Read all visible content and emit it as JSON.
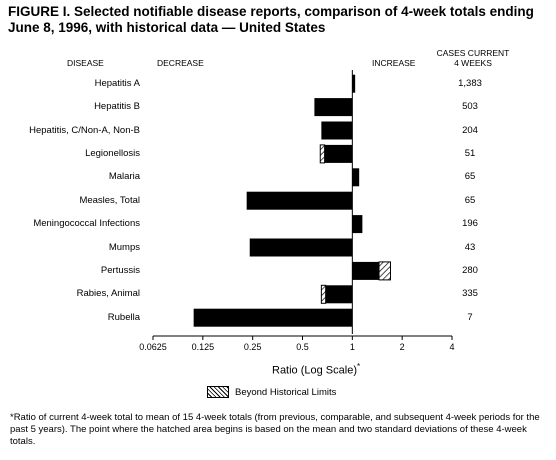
{
  "title": "FIGURE I. Selected notifiable disease reports, comparison of 4-week totals ending June 8, 1996, with historical data — United States",
  "headers": {
    "disease": "DISEASE",
    "decrease": "DECREASE",
    "increase": "INCREASE",
    "cases_line1": "CASES CURRENT",
    "cases_line2": "4 WEEKS"
  },
  "legend": {
    "label": "Beyond Historical Limits"
  },
  "footnote": "*Ratio of current 4-week total to mean of 15 4-week totals (from previous, comparable, and subsequent 4-week periods for the past 5 years). The point where the hatched area begins is based on the mean and two standard deviations of these 4-week totals.",
  "chart_data": {
    "type": "bar",
    "orientation": "horizontal",
    "xscale": "log2",
    "xlabel": "Ratio (Log Scale)",
    "xlabel_marker": "*",
    "xlim": [
      0.0625,
      4
    ],
    "xticks": [
      "0.0625",
      "0.125",
      "0.25",
      "0.5",
      "1",
      "2",
      "4"
    ],
    "rows": [
      {
        "disease": "Hepatitis A",
        "ratio": 1.04,
        "cases": "1,383",
        "beyond_limit_start": null
      },
      {
        "disease": "Hepatitis B",
        "ratio": 0.59,
        "cases": "503",
        "beyond_limit_start": null
      },
      {
        "disease": "Hepatitis, C/Non-A, Non-B",
        "ratio": 0.65,
        "cases": "204",
        "beyond_limit_start": null
      },
      {
        "disease": "Legionellosis",
        "ratio": 0.64,
        "cases": "51",
        "beyond_limit_start": 0.68
      },
      {
        "disease": "Malaria",
        "ratio": 1.1,
        "cases": "65",
        "beyond_limit_start": null
      },
      {
        "disease": "Measles, Total",
        "ratio": 0.23,
        "cases": "65",
        "beyond_limit_start": null
      },
      {
        "disease": "Meningococcal Infections",
        "ratio": 1.15,
        "cases": "196",
        "beyond_limit_start": null
      },
      {
        "disease": "Mumps",
        "ratio": 0.24,
        "cases": "43",
        "beyond_limit_start": null
      },
      {
        "disease": "Pertussis",
        "ratio": 1.7,
        "cases": "280",
        "beyond_limit_start": 1.45
      },
      {
        "disease": "Rabies, Animal",
        "ratio": 0.65,
        "cases": "335",
        "beyond_limit_start": 0.69
      },
      {
        "disease": "Rubella",
        "ratio": 0.11,
        "cases": "7",
        "beyond_limit_start": null
      }
    ],
    "colors": {
      "bar": "#000000",
      "hatch_bg": "#ffffff"
    }
  }
}
